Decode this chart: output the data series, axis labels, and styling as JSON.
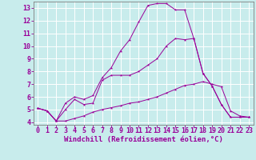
{
  "xlabel": "Windchill (Refroidissement éolien,°C)",
  "background_color": "#c8ecec",
  "line_color": "#990099",
  "grid_color": "#ffffff",
  "spine_color": "#808080",
  "xlim": [
    -0.5,
    23.5
  ],
  "ylim": [
    3.8,
    13.5
  ],
  "xticks": [
    0,
    1,
    2,
    3,
    4,
    5,
    6,
    7,
    8,
    9,
    10,
    11,
    12,
    13,
    14,
    15,
    16,
    17,
    18,
    19,
    20,
    21,
    22,
    23
  ],
  "yticks": [
    4,
    5,
    6,
    7,
    8,
    9,
    10,
    11,
    12,
    13
  ],
  "line1_x": [
    0,
    1,
    2,
    3,
    4,
    5,
    6,
    7,
    8,
    9,
    10,
    11,
    12,
    13,
    14,
    15,
    16,
    17,
    18,
    19,
    20,
    21,
    22,
    23
  ],
  "line1_y": [
    5.1,
    4.9,
    4.1,
    5.5,
    6.0,
    5.8,
    6.1,
    7.5,
    8.3,
    9.6,
    10.5,
    11.9,
    13.2,
    13.35,
    13.35,
    12.85,
    12.85,
    10.6,
    7.85,
    6.85,
    5.4,
    4.4,
    4.4,
    4.4
  ],
  "line2_x": [
    0,
    1,
    2,
    3,
    4,
    5,
    6,
    7,
    8,
    9,
    10,
    11,
    12,
    13,
    14,
    15,
    16,
    17,
    18,
    19,
    20,
    21,
    22,
    23
  ],
  "line2_y": [
    5.1,
    4.9,
    4.1,
    5.0,
    5.8,
    5.4,
    5.5,
    7.3,
    7.7,
    7.7,
    7.7,
    8.0,
    8.5,
    9.0,
    10.0,
    10.6,
    10.5,
    10.6,
    7.85,
    6.85,
    5.4,
    4.4,
    4.4,
    4.4
  ],
  "line3_x": [
    0,
    1,
    2,
    3,
    4,
    5,
    6,
    7,
    8,
    9,
    10,
    11,
    12,
    13,
    14,
    15,
    16,
    17,
    18,
    19,
    20,
    21,
    22,
    23
  ],
  "line3_y": [
    5.1,
    4.9,
    4.1,
    4.1,
    4.3,
    4.5,
    4.8,
    5.0,
    5.15,
    5.3,
    5.5,
    5.6,
    5.8,
    6.0,
    6.3,
    6.6,
    6.9,
    7.0,
    7.2,
    7.0,
    6.8,
    4.9,
    4.5,
    4.4
  ],
  "xlabel_fontsize": 6.5,
  "tick_fontsize": 6.0
}
